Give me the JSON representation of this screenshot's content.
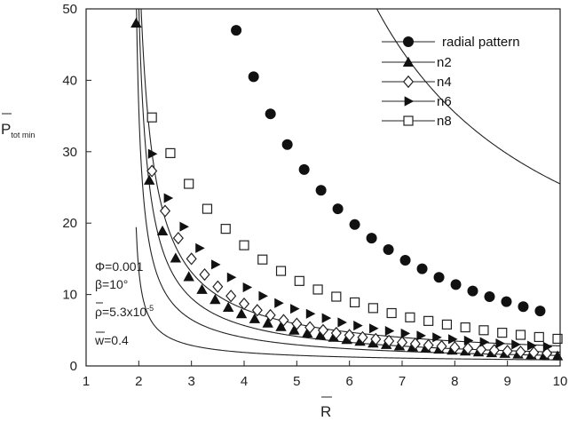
{
  "chart_data": {
    "type": "line",
    "title": "",
    "xlabel": "R",
    "ylabel_main": "P",
    "ylabel_sub": "tot min",
    "xlim": [
      1,
      10
    ],
    "ylim": [
      0,
      50
    ],
    "xticks": [
      "1",
      "2",
      "3",
      "4",
      "5",
      "6",
      "7",
      "8",
      "9",
      "10"
    ],
    "yticks": [
      "0",
      "10",
      "20",
      "30",
      "40",
      "50"
    ],
    "grid": false,
    "legend_position": "top-right",
    "annotations": [
      {
        "text": "Φ=0.001"
      },
      {
        "text": "β=10°"
      },
      {
        "text_main": "ρ=5.3x10",
        "text_sup": "-5"
      },
      {
        "text": "w=0.4"
      }
    ],
    "series": [
      {
        "name": "radial pattern",
        "marker": "circle-filled",
        "x": [
          3.85,
          4.18,
          4.5,
          4.82,
          5.14,
          5.46,
          5.78,
          6.1,
          6.42,
          6.74,
          7.06,
          7.38,
          7.7,
          8.02,
          8.34,
          8.66,
          8.98,
          9.3,
          9.62
        ],
        "y": [
          47,
          40.5,
          35.3,
          31,
          27.5,
          24.6,
          22,
          19.8,
          17.9,
          16.3,
          14.8,
          13.6,
          12.4,
          11.4,
          10.5,
          9.7,
          9,
          8.3,
          7.7
        ]
      },
      {
        "name": "n2",
        "marker": "triangle-filled",
        "x": [
          1.95,
          2.2,
          2.45,
          2.7,
          2.95,
          3.2,
          3.45,
          3.7,
          3.95,
          4.2,
          4.45,
          4.7,
          4.95,
          5.2,
          5.45,
          5.7,
          5.95,
          6.2,
          6.45,
          6.7,
          6.95,
          7.2,
          7.45,
          7.7,
          7.95,
          8.2,
          8.45,
          8.7,
          8.95,
          9.2,
          9.45,
          9.7,
          9.95
        ],
        "y": [
          48,
          26,
          18.9,
          15.1,
          12.5,
          10.7,
          9.3,
          8.2,
          7.3,
          6.6,
          6,
          5.5,
          5,
          4.6,
          4.3,
          4,
          3.7,
          3.45,
          3.2,
          3,
          2.8,
          2.65,
          2.5,
          2.35,
          2.2,
          2.08,
          1.96,
          1.85,
          1.75,
          1.66,
          1.57,
          1.49,
          1.41
        ]
      },
      {
        "name": "n4",
        "marker": "diamond-open",
        "x": [
          2.25,
          2.5,
          2.75,
          3,
          3.25,
          3.5,
          3.75,
          4,
          4.25,
          4.5,
          4.75,
          5,
          5.25,
          5.5,
          5.75,
          6,
          6.25,
          6.5,
          6.75,
          7,
          7.25,
          7.5,
          7.75,
          8,
          8.25,
          8.5,
          8.75,
          9,
          9.25,
          9.5,
          9.75
        ],
        "y": [
          27.3,
          21.7,
          17.9,
          15,
          12.8,
          11.1,
          9.8,
          8.7,
          7.8,
          7.1,
          6.4,
          5.9,
          5.4,
          5,
          4.6,
          4.3,
          4,
          3.75,
          3.5,
          3.3,
          3.1,
          2.9,
          2.75,
          2.6,
          2.45,
          2.3,
          2.2,
          2.08,
          1.97,
          1.87,
          1.78
        ]
      },
      {
        "name": "n6",
        "marker": "triangle-right-filled",
        "x": [
          2.25,
          2.55,
          2.85,
          3.15,
          3.45,
          3.75,
          4.05,
          4.35,
          4.65,
          4.95,
          5.25,
          5.55,
          5.85,
          6.15,
          6.45,
          6.75,
          7.05,
          7.35,
          7.65,
          7.95,
          8.25,
          8.55,
          8.85,
          9.15,
          9.45,
          9.75
        ],
        "y": [
          29.7,
          23.5,
          19.5,
          16.5,
          14.2,
          12.4,
          11,
          9.8,
          8.8,
          8,
          7.3,
          6.7,
          6.1,
          5.65,
          5.25,
          4.9,
          4.55,
          4.25,
          4,
          3.75,
          3.55,
          3.35,
          3.15,
          3,
          2.85,
          2.7
        ]
      },
      {
        "name": "n8",
        "marker": "square-open",
        "x": [
          2.25,
          2.6,
          2.95,
          3.3,
          3.65,
          4,
          4.35,
          4.7,
          5.05,
          5.4,
          5.75,
          6.1,
          6.45,
          6.8,
          7.15,
          7.5,
          7.85,
          8.2,
          8.55,
          8.9,
          9.25,
          9.6,
          9.95
        ],
        "y": [
          34.8,
          29.8,
          25.5,
          22,
          19.2,
          16.9,
          14.9,
          13.3,
          11.9,
          10.7,
          9.7,
          8.9,
          8.1,
          7.4,
          6.8,
          6.3,
          5.8,
          5.4,
          5,
          4.65,
          4.35,
          4.05,
          3.8
        ]
      }
    ]
  }
}
